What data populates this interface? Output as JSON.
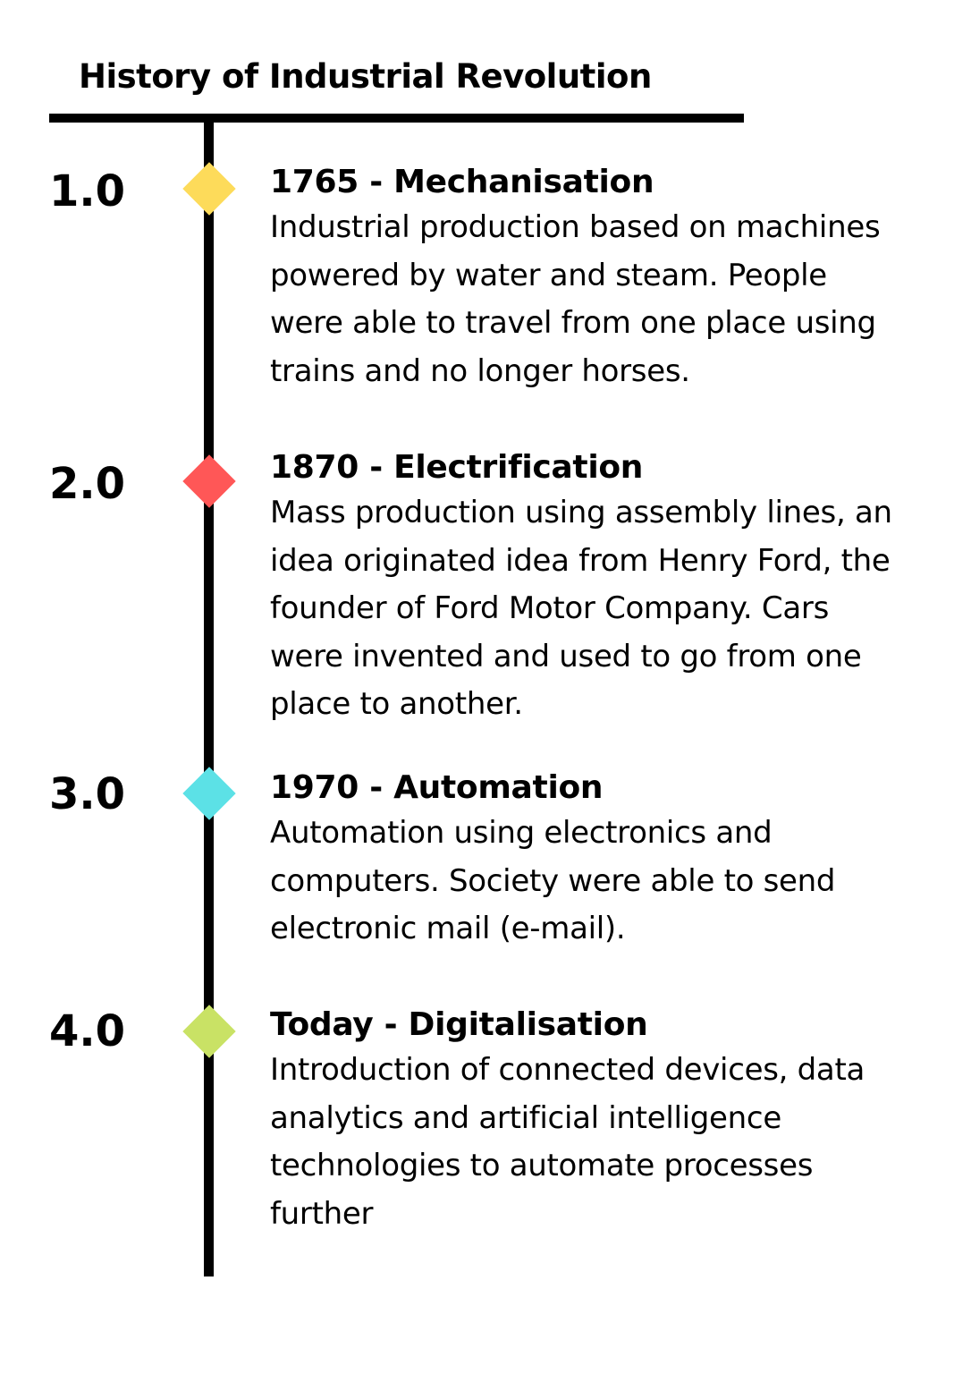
{
  "title": "History of Industrial Revolution",
  "colors": {
    "line": "#000000",
    "marker_1": "#FDDB5A",
    "marker_2": "#FF5757",
    "marker_3": "#5CE1E6",
    "marker_4": "#C9E265"
  },
  "entries": [
    {
      "version": "1.0",
      "heading": "1765 - Mechanisation",
      "lines": [
        "Industrial production based on machines",
        "powered by water and steam. People",
        "were able to travel from one place using",
        "trains and no longer horses."
      ]
    },
    {
      "version": "2.0",
      "heading": "1870 - Electrification",
      "lines": [
        "Mass production using assembly lines, an",
        "idea originated idea from Henry Ford, the",
        "founder of Ford Motor Company. Cars",
        "were invented and used to go from one",
        "place to another."
      ]
    },
    {
      "version": "3.0",
      "heading": "1970 - Automation",
      "lines": [
        "Automation using electronics and",
        "computers. Society were able to send",
        "electronic mail (e-mail)."
      ]
    },
    {
      "version": "4.0",
      "heading": "Today - Digitalisation",
      "lines": [
        "Introduction of connected devices, data",
        "analytics and artificial intelligence",
        "technologies to automate processes",
        "further"
      ]
    }
  ]
}
